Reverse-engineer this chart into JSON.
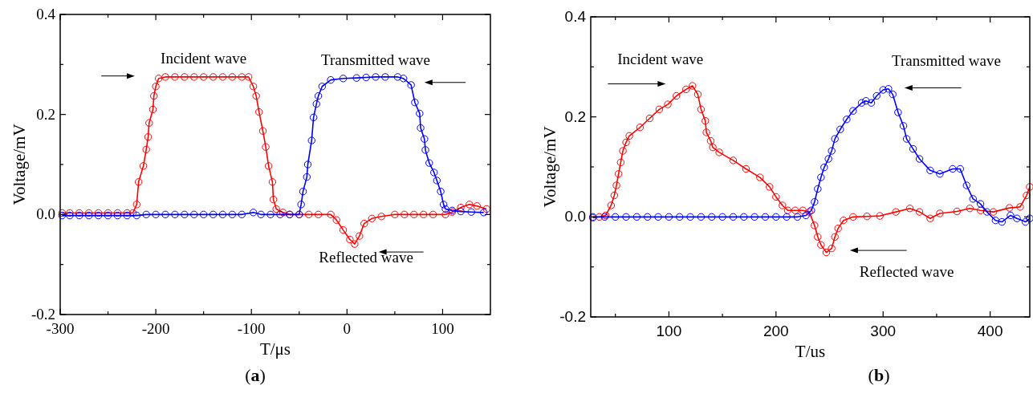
{
  "chart_data": [
    {
      "type": "line",
      "xlabel": "T/μs",
      "ylabel": "Voltage/mV",
      "xlim": [
        -300,
        150
      ],
      "ylim": [
        -0.2,
        0.4
      ],
      "xticks": [
        -300,
        {
          "value": -250,
          "label": null
        },
        -200,
        {
          "value": -150,
          "label": null
        },
        -100,
        {
          "value": -50,
          "label": null
        },
        0,
        {
          "value": 50,
          "label": null
        },
        100
      ],
      "yticks": [
        -0.2,
        {
          "value": -0.1,
          "label": null
        },
        {
          "value": 0,
          "label": "0.0"
        },
        {
          "value": 0.1,
          "label": null
        },
        0.2,
        {
          "value": 0.3,
          "label": null
        },
        0.4
      ],
      "marker": "circle",
      "line_style": "solid",
      "grid": false,
      "annotations": [
        "Incident wave",
        "Transmitted wave",
        "Reflected wave",
        "(a)"
      ],
      "series": [
        {
          "color": "#ff0000",
          "x": [
            -298,
            -290,
            -280,
            -270,
            -260,
            -250,
            -240,
            -230,
            -224,
            -220,
            -218,
            -213,
            -210,
            -208,
            -207,
            -203,
            -202,
            -200,
            -197,
            -190,
            -180,
            -170,
            -160,
            -150,
            -140,
            -130,
            -120,
            -110,
            -103,
            -98,
            -95,
            -92,
            -88,
            -85,
            -82,
            -78,
            -77,
            -74,
            -67,
            -60,
            -50,
            -40,
            -30,
            -17,
            -11,
            -4,
            3,
            8,
            13,
            18,
            26,
            36,
            50,
            60,
            70,
            80,
            90,
            103,
            110,
            119,
            128,
            136,
            146
          ],
          "values": [
            0.003,
            0.003,
            0.003,
            0.003,
            0.003,
            0.003,
            0.003,
            0.003,
            0.003,
            0.02,
            0.065,
            0.097,
            0.13,
            0.155,
            0.183,
            0.21,
            0.237,
            0.256,
            0.272,
            0.275,
            0.275,
            0.275,
            0.275,
            0.275,
            0.275,
            0.275,
            0.275,
            0.275,
            0.275,
            0.256,
            0.237,
            0.205,
            0.167,
            0.135,
            0.097,
            0.065,
            0.03,
            0.011,
            0.004,
            0,
            0,
            0,
            0,
            0,
            -0.011,
            -0.031,
            -0.05,
            -0.059,
            -0.043,
            -0.018,
            -0.008,
            -0.004,
            0,
            0,
            0,
            0,
            0,
            0,
            0.005,
            0.014,
            0.02,
            0.017,
            0.011
          ]
        },
        {
          "color": "#0000ff",
          "x": [
            -298,
            -290,
            -280,
            -270,
            -260,
            -250,
            -240,
            -230,
            -220,
            -210,
            -200,
            -190,
            -180,
            -170,
            -160,
            -150,
            -140,
            -130,
            -120,
            -110,
            -98,
            -90,
            -80,
            -70,
            -60,
            -50,
            -48,
            -46,
            -42,
            -41,
            -37,
            -35,
            -32,
            -30,
            -26,
            -17,
            -4,
            10,
            20,
            30,
            40,
            53,
            59,
            67,
            71,
            76,
            77,
            81,
            82,
            86,
            91,
            94,
            98,
            101,
            103,
            110,
            119,
            130,
            143
          ],
          "values": [
            -0.002,
            -0.002,
            -0.002,
            -0.002,
            -0.002,
            -0.002,
            -0.002,
            -0.002,
            -0.002,
            0,
            0,
            0,
            0,
            0,
            0,
            0,
            0,
            0,
            0,
            0,
            0.004,
            0,
            0,
            0,
            0,
            0,
            0.02,
            0.046,
            0.075,
            0.1,
            0.148,
            0.194,
            0.221,
            0.237,
            0.256,
            0.269,
            0.272,
            0.273,
            0.274,
            0.275,
            0.275,
            0.275,
            0.272,
            0.259,
            0.224,
            0.202,
            0.173,
            0.151,
            0.129,
            0.103,
            0.084,
            0.068,
            0.046,
            0.02,
            0.011,
            0.008,
            0.006,
            0.005,
            0.004
          ]
        }
      ]
    },
    {
      "type": "line",
      "xlabel": "T/us",
      "ylabel": "Voltage/mV",
      "xlim": [
        27,
        437
      ],
      "ylim": [
        -0.2,
        0.4
      ],
      "xticks": [
        {
          "value": 50,
          "label": null
        },
        100,
        {
          "value": 150,
          "label": null
        },
        200,
        {
          "value": 250,
          "label": null
        },
        300,
        {
          "value": 350,
          "label": null
        },
        400
      ],
      "yticks": [
        -0.2,
        {
          "value": -0.1,
          "label": null
        },
        {
          "value": 0,
          "label": "0.0"
        },
        {
          "value": 0.1,
          "label": null
        },
        0.2,
        {
          "value": 0.3,
          "label": null
        },
        0.4
      ],
      "marker": "circle",
      "line_style": "solid",
      "grid": false,
      "annotations": [
        "Incident wave",
        "Transmitted wave",
        "Reflected wave",
        "(b)"
      ],
      "series": [
        {
          "color": "#ff0000",
          "x": [
            29,
            35,
            41,
            46,
            49,
            51,
            53,
            55,
            57,
            60,
            63,
            73,
            82,
            91,
            99,
            107,
            116,
            122,
            127,
            130,
            134,
            135,
            139,
            141,
            147,
            160,
            172,
            185,
            194,
            200,
            206,
            211,
            218,
            225,
            231,
            236,
            239,
            242,
            247,
            252,
            255,
            258,
            263,
            272,
            285,
            297,
            312,
            325,
            334,
            344,
            353,
            369,
            381,
            391,
            403,
            418,
            428,
            434,
            437
          ],
          "values": [
            -0.002,
            0,
            0.003,
            0.023,
            0.043,
            0.063,
            0.086,
            0.109,
            0.132,
            0.149,
            0.162,
            0.179,
            0.197,
            0.215,
            0.225,
            0.242,
            0.255,
            0.262,
            0.245,
            0.215,
            0.192,
            0.169,
            0.152,
            0.139,
            0.129,
            0.113,
            0.096,
            0.079,
            0.06,
            0.04,
            0.023,
            0.013,
            0.013,
            0.013,
            0.01,
            -0.017,
            -0.04,
            -0.056,
            -0.071,
            -0.063,
            -0.04,
            -0.023,
            -0.007,
            0,
            0.001,
            0.002,
            0.01,
            0.017,
            0.01,
            -0.003,
            0.007,
            0.011,
            0.017,
            0.013,
            0.01,
            0.018,
            0.02,
            0.043,
            0.06
          ]
        },
        {
          "color": "#0000ff",
          "x": [
            29,
            40,
            50,
            60,
            70,
            80,
            90,
            100,
            110,
            120,
            130,
            140,
            150,
            160,
            170,
            180,
            190,
            200,
            210,
            220,
            228,
            233,
            236,
            239,
            242,
            245,
            249,
            252,
            255,
            260,
            266,
            272,
            280,
            284,
            289,
            294,
            300,
            305,
            309,
            314,
            319,
            322,
            328,
            334,
            344,
            353,
            365,
            372,
            378,
            384,
            391,
            397,
            405,
            411,
            419,
            425,
            433,
            437
          ],
          "values": [
            0,
            0,
            0,
            0,
            0,
            0,
            0,
            0,
            0,
            0,
            0,
            0,
            0,
            0,
            0,
            0,
            0,
            0,
            0,
            0,
            0.003,
            0.013,
            0.03,
            0.056,
            0.079,
            0.099,
            0.116,
            0.132,
            0.156,
            0.175,
            0.195,
            0.212,
            0.228,
            0.232,
            0.228,
            0.242,
            0.254,
            0.256,
            0.245,
            0.209,
            0.182,
            0.156,
            0.136,
            0.116,
            0.093,
            0.086,
            0.096,
            0.096,
            0.063,
            0.036,
            0.026,
            0.01,
            -0.007,
            -0.01,
            0.003,
            -0.003,
            -0.01,
            -0.003
          ]
        }
      ]
    }
  ]
}
